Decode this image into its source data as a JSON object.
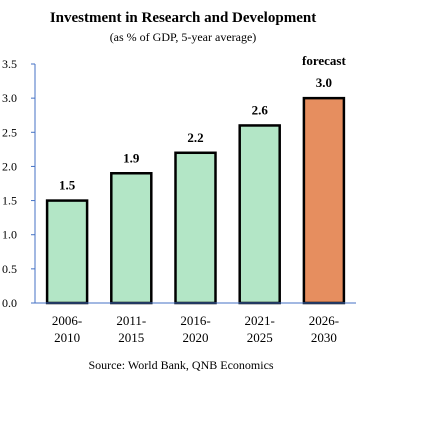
{
  "chart_data": {
    "type": "bar",
    "title": "Investment in Research and Development",
    "subtitle": "(as % of GDP, 5-year average)",
    "source": "Source: World Bank, QNB Economics",
    "categories": [
      [
        "2006-",
        "2010"
      ],
      [
        "2011-",
        "2015"
      ],
      [
        "2016-",
        "2020"
      ],
      [
        "2021-",
        "2025"
      ],
      [
        "2026-",
        "2030"
      ]
    ],
    "values": [
      1.5,
      1.9,
      2.2,
      2.6,
      3.0
    ],
    "value_labels": [
      "1.5",
      "1.9",
      "2.2",
      "2.6",
      "3.0"
    ],
    "forecast_label": "forecast",
    "forecast_index": 4,
    "y_ticks": [
      "0.0",
      "0.5",
      "1.0",
      "1.5",
      "2.0",
      "2.5",
      "3.0",
      "3.5"
    ],
    "ylim": [
      0,
      3.5
    ],
    "grid": false,
    "colors": {
      "bar": "#b3e6c6",
      "forecast_bar": "#e68e5f",
      "border": "#000000",
      "axis": "#4472c4"
    }
  }
}
